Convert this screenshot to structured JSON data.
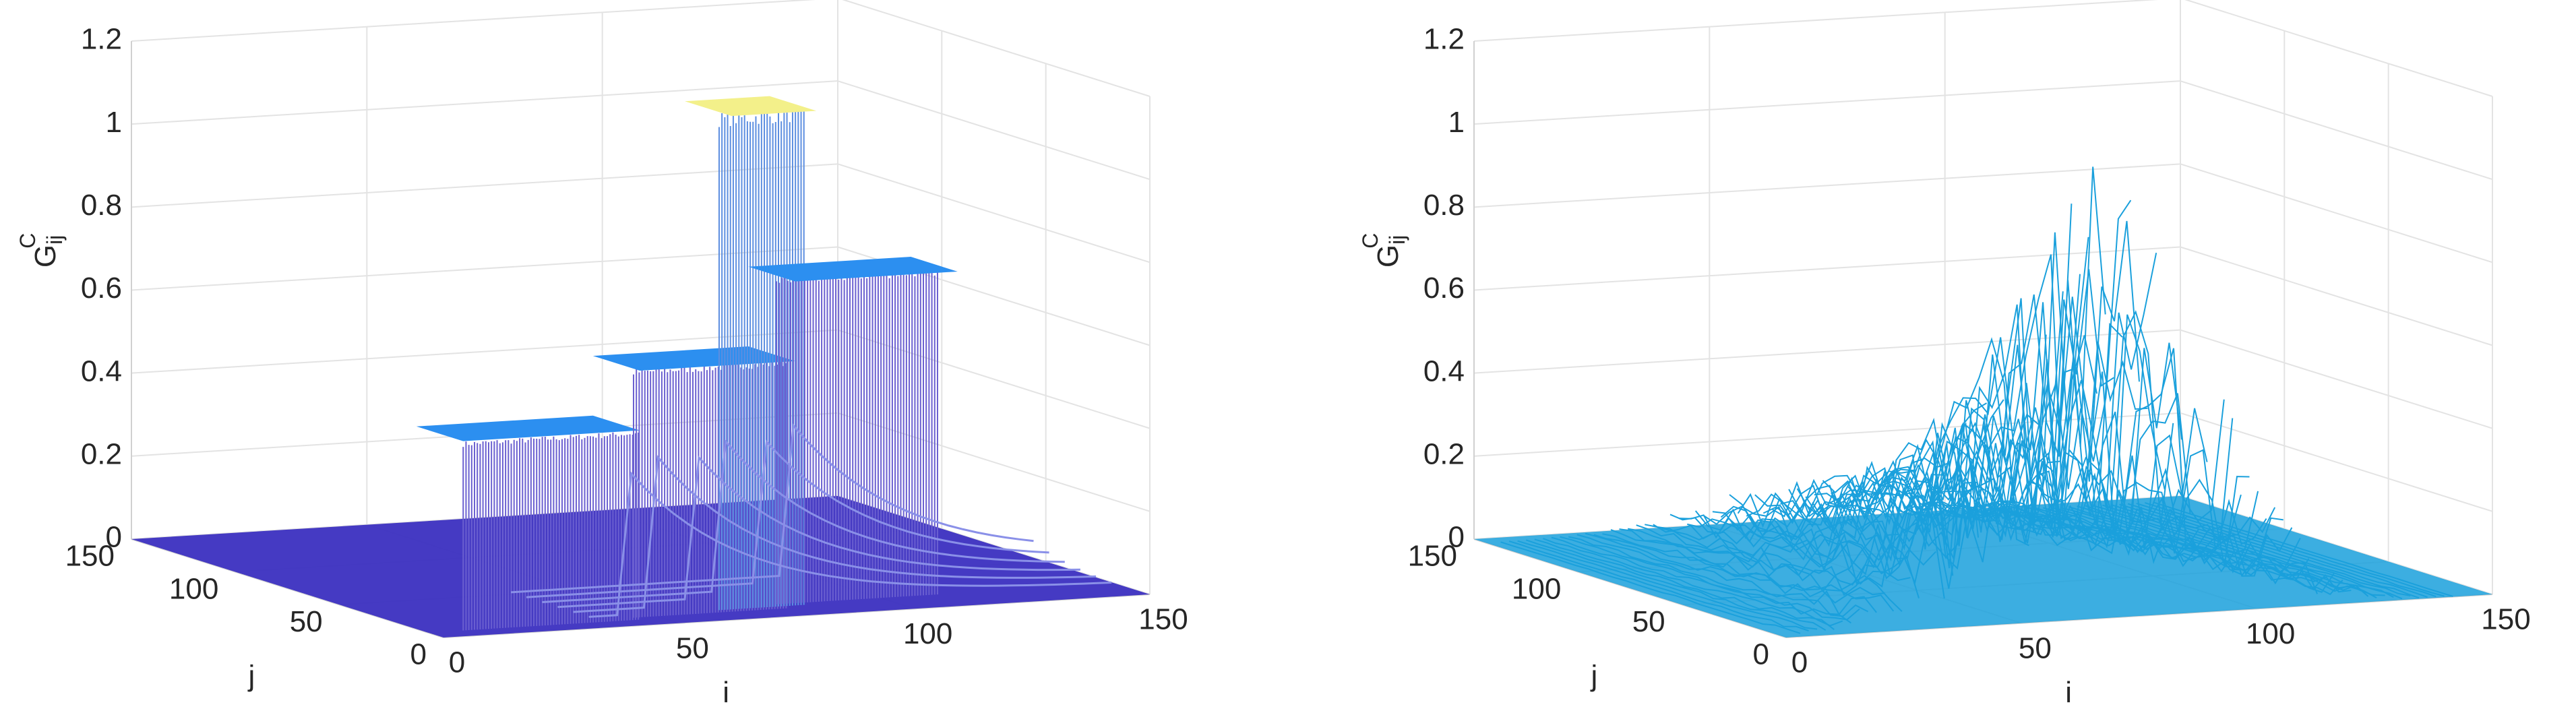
{
  "chart_data": [
    {
      "type": "surface",
      "xlabel": "i",
      "ylabel": "j",
      "zlabel": "G",
      "zlabel_sup": "C",
      "zlabel_sub": "ij",
      "xlim": [
        0,
        150
      ],
      "xticks": [
        0,
        50,
        100,
        150
      ],
      "ylim": [
        0,
        150
      ],
      "yticks": [
        0,
        50,
        100,
        150
      ],
      "zlim": [
        0,
        1.2
      ],
      "zticks": [
        0,
        0.2,
        0.4,
        0.6,
        0.8,
        1,
        1.2
      ],
      "grid": true,
      "color": "#3b2fc0"
    },
    {
      "type": "surface",
      "xlabel": "i",
      "ylabel": "j",
      "zlabel": "G",
      "zlabel_sup": "C",
      "zlabel_sub": "ij",
      "xlim": [
        0,
        150
      ],
      "xticks": [
        0,
        50,
        100,
        150
      ],
      "ylim": [
        0,
        150
      ],
      "yticks": [
        0,
        50,
        100,
        150
      ],
      "zlim": [
        0,
        1.2
      ],
      "zticks": [
        0,
        0.2,
        0.4,
        0.6,
        0.8,
        1,
        1.2
      ],
      "grid": true,
      "color": "#1aa0dc"
    }
  ]
}
